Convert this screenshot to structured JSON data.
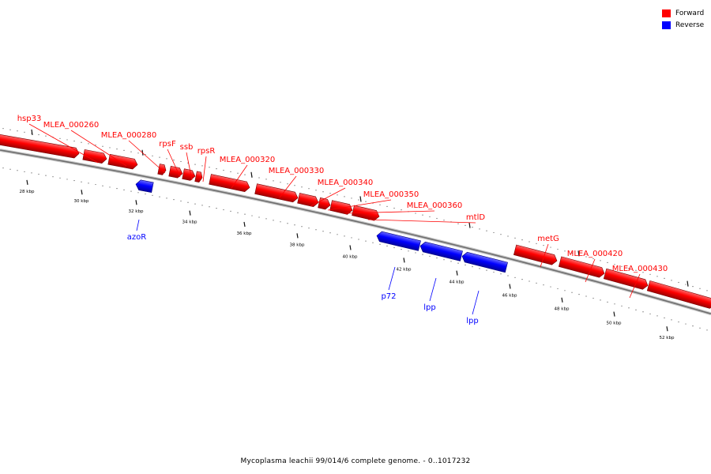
{
  "colors": {
    "forward": "#ff0000",
    "reverse": "#0000ff",
    "backbone": "#808080"
  },
  "legend": [
    {
      "label": "Forward",
      "color": "#ff0000"
    },
    {
      "label": "Reverse",
      "color": "#0000ff"
    }
  ],
  "caption": "Mycoplasma leachii 99/014/6 complete genome. - 0..1017232",
  "axis": {
    "unit": "kbp",
    "tick_labels": [
      "28 kbp",
      "30 kbp",
      "32 kbp",
      "34 kbp",
      "36 kbp",
      "38 kbp",
      "40 kbp",
      "42 kbp",
      "44 kbp",
      "46 kbp",
      "48 kbp",
      "50 kbp",
      "52 kbp"
    ]
  },
  "genes": [
    {
      "label": "hsp33",
      "strand": "forward"
    },
    {
      "label": "MLEA_000260",
      "strand": "forward"
    },
    {
      "label": "MLEA_000280",
      "strand": "forward"
    },
    {
      "label": "rpsF",
      "strand": "forward"
    },
    {
      "label": "ssb",
      "strand": "forward"
    },
    {
      "label": "rpsR",
      "strand": "forward"
    },
    {
      "label": "MLEA_000320",
      "strand": "forward"
    },
    {
      "label": "MLEA_000330",
      "strand": "forward"
    },
    {
      "label": "MLEA_000340",
      "strand": "forward"
    },
    {
      "label": "MLEA_000350",
      "strand": "forward"
    },
    {
      "label": "MLEA_000360",
      "strand": "forward"
    },
    {
      "label": "mtlD",
      "strand": "forward"
    },
    {
      "label": "metG",
      "strand": "forward"
    },
    {
      "label": "MLEA_000420",
      "strand": "forward"
    },
    {
      "label": "MLEA_000430",
      "strand": "forward"
    },
    {
      "label": "azoR",
      "strand": "reverse"
    },
    {
      "label": "p72",
      "strand": "reverse"
    },
    {
      "label": "lpp",
      "strand": "reverse"
    },
    {
      "label": "lpp",
      "strand": "reverse"
    }
  ]
}
